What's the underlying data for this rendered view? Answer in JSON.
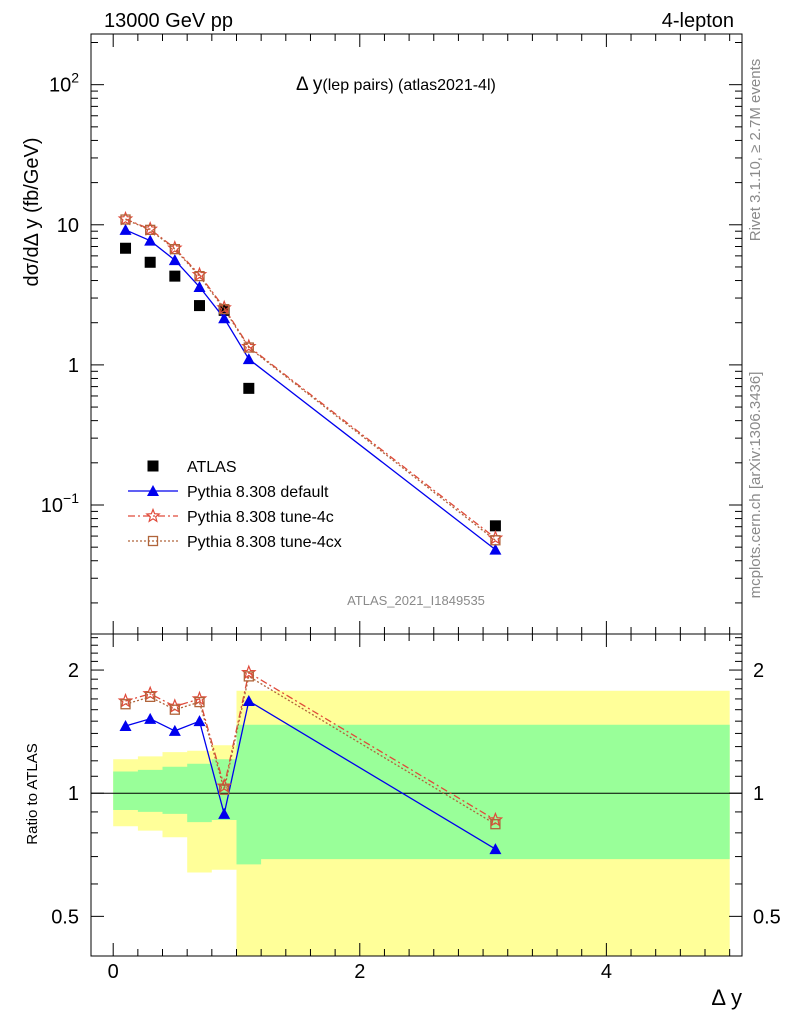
{
  "header": {
    "left": "13000 GeV pp",
    "right": "4-lepton"
  },
  "side": {
    "rivet": "Rivet 3.1.10, ≥ 2.7M events",
    "mcplots": "mcplots.cern.ch [arXiv:1306.3436]"
  },
  "watermark": "ATLAS_2021_I1849535",
  "chart_data": [
    {
      "type": "scatter",
      "title_main": "Δ y",
      "title_sub": "(lep pairs) (atlas2021-4l)",
      "ylabel": "dσ/dΔ y (fb/GeV)",
      "yscale": "log",
      "ylim": [
        0.012,
        230
      ],
      "xlim": [
        -0.18,
        5.1
      ],
      "ytick_labels": [
        "10",
        "1"
      ],
      "ytick_exp": [
        {
          "base": "10",
          "exp": "2"
        },
        {
          "base": "10",
          "exp": "−1"
        }
      ],
      "legend_position": "lower-left",
      "x": [
        0.1,
        0.3,
        0.5,
        0.7,
        0.9,
        1.1,
        3.1
      ],
      "series": [
        {
          "name": "ATLAS",
          "color": "#000000",
          "marker": "square",
          "line": "none",
          "values": [
            6.8,
            5.4,
            4.3,
            2.65,
            2.45,
            0.68,
            0.071
          ]
        },
        {
          "name": "Pythia 8.308 default",
          "color": "#0000ee",
          "marker": "triangle",
          "line": "solid",
          "values": [
            9.2,
            7.7,
            5.6,
            3.6,
            2.15,
            1.1,
            0.048
          ]
        },
        {
          "name": "Pythia 8.308 tune-4c",
          "color": "#e04a3a",
          "marker": "star",
          "line": "dashdot",
          "values": [
            11.0,
            9.3,
            6.8,
            4.4,
            2.55,
            1.35,
            0.058
          ]
        },
        {
          "name": "Pythia 8.308 tune-4cx",
          "color": "#b0643a",
          "marker": "opensquare",
          "line": "dotted",
          "values": [
            10.9,
            9.2,
            6.7,
            4.3,
            2.5,
            1.33,
            0.056
          ]
        }
      ]
    },
    {
      "type": "line",
      "ylabel": "Ratio to ATLAS",
      "xlabel": "Δ y",
      "yscale": "log",
      "ylim": [
        0.4,
        2.45
      ],
      "xlim": [
        -0.18,
        5.1
      ],
      "xtick_labels": [
        "0",
        "2",
        "4"
      ],
      "xticks": [
        0,
        2,
        4
      ],
      "ytick_labels": [
        "2",
        "1",
        "0.5"
      ],
      "yticks": [
        2,
        1,
        0.5
      ],
      "x": [
        0.1,
        0.3,
        0.5,
        0.7,
        0.9,
        1.1,
        3.1
      ],
      "bands": {
        "edges": [
          0.0,
          0.2,
          0.4,
          0.6,
          0.8,
          1.0,
          1.2,
          5.0
        ],
        "yellow": [
          [
            0.83,
            1.21
          ],
          [
            0.81,
            1.23
          ],
          [
            0.78,
            1.26
          ],
          [
            0.64,
            1.27
          ],
          [
            0.65,
            1.31
          ],
          [
            0.35,
            1.78
          ],
          [
            0.35,
            1.78
          ]
        ],
        "green": [
          [
            0.91,
            1.13
          ],
          [
            0.9,
            1.14
          ],
          [
            0.89,
            1.16
          ],
          [
            0.85,
            1.18
          ],
          [
            0.86,
            1.21
          ],
          [
            0.67,
            1.47
          ],
          [
            0.69,
            1.47
          ]
        ]
      },
      "series": [
        {
          "name": "Pythia 8.308 default",
          "color": "#0000ee",
          "values": [
            1.46,
            1.52,
            1.42,
            1.5,
            0.89,
            1.68,
            0.73
          ]
        },
        {
          "name": "Pythia 8.308 tune-4c",
          "color": "#e04a3a",
          "values": [
            1.68,
            1.75,
            1.63,
            1.7,
            1.04,
            1.97,
            0.86
          ]
        },
        {
          "name": "Pythia 8.308 tune-4cx",
          "color": "#b0643a",
          "values": [
            1.65,
            1.72,
            1.6,
            1.67,
            1.02,
            1.93,
            0.84
          ]
        }
      ]
    }
  ]
}
